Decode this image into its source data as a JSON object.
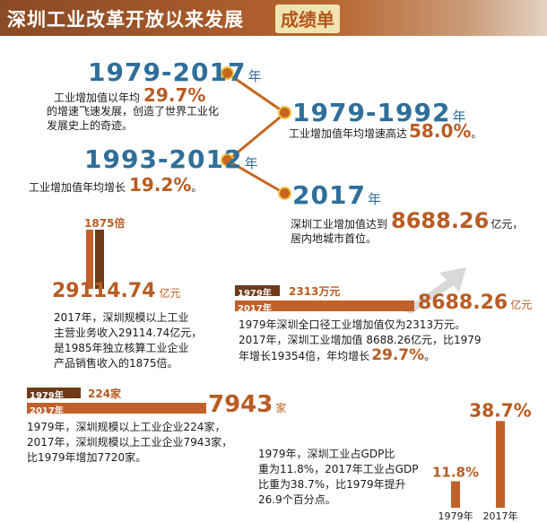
{
  "header": {
    "title": "深圳工业改革开放以来发展",
    "badge": "成绩单"
  },
  "year_suffix": "年",
  "timeline": {
    "p1": {
      "range": "1979-2017",
      "desc": [
        "工业增加值以年均",
        "的增速飞速发展，创造了世界工业化",
        "发展史上的奇迹。"
      ],
      "value": "29.7%"
    },
    "p2": {
      "range": "1979-1992",
      "desc": "工业增加值年均增速高达",
      "value": "58.0%",
      "tail": "。"
    },
    "p3": {
      "range": "1993-2012",
      "desc": "工业增加值年均增长",
      "value": "19.2%",
      "tail": "。"
    },
    "p4": {
      "range": "2017",
      "desc": "深圳工业增加值达到",
      "value": "8688.26",
      "unit": "亿元，",
      "desc2": "居内地城市首位。"
    }
  },
  "revenue": {
    "multiple": "1875倍",
    "value": "29114.74",
    "unit": "亿元",
    "desc": [
      "2017年，深圳规模以上工业",
      "主营业务收入29114.74亿元，",
      "是1985年独立核算工业企业",
      "产品销售收入的1875倍。"
    ]
  },
  "added_value": {
    "bar1_year": "1979年",
    "bar1_value": "2313万元",
    "bar2_year": "2017年",
    "bar2_value": "8688.26",
    "bar2_unit": "亿元",
    "desc": [
      "1979年深圳全口径工业增加值仅为2313万元。",
      "2017年，深圳工业增加值 8688.26亿元，比1979",
      "年增长19354倍，年均增长"
    ],
    "desc_value": "29.7%",
    "desc_tail": "。"
  },
  "enterprises": {
    "bar1_year": "1979年",
    "bar1_value": "224家",
    "bar2_year": "2017年",
    "bar2_value": "7943",
    "bar2_unit": "家",
    "desc": [
      "1979年，深圳规模以上工业企业224家，",
      "2017年，深圳规模以上工业企业7943家，",
      "比1979年增加7720家。"
    ]
  },
  "gdp_share": {
    "desc": [
      "1979年，深圳工业占GDP比",
      "重为11.8%，2017年工业占GDP",
      "比重为38.7%，比1979年提升",
      "26.9个百分点。"
    ],
    "chart_data": {
      "type": "bar",
      "categories": [
        "1979年",
        "2017年"
      ],
      "values": [
        11.8,
        38.7
      ],
      "value_labels": [
        "11.8%",
        "38.7%"
      ]
    }
  },
  "colors": {
    "accent": "#b85c22",
    "blue": "#2f6f99",
    "dark_bar": "#6e3a17",
    "orange_bar": "#c0612a",
    "dot": "#c7671f"
  }
}
